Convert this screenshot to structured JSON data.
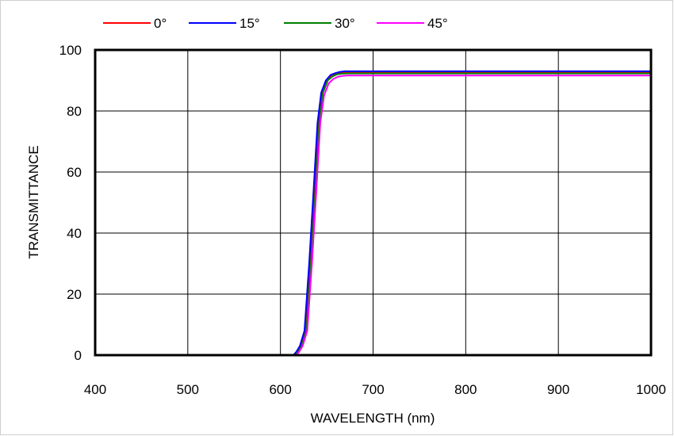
{
  "chart_data": {
    "type": "line",
    "xlabel": "WAVELENGTH (nm)",
    "ylabel": "TRANSMITTANCE",
    "xlim": [
      400,
      1000
    ],
    "ylim": [
      0,
      100
    ],
    "x_ticks": [
      400,
      500,
      600,
      700,
      800,
      900,
      1000
    ],
    "y_ticks": [
      0,
      20,
      40,
      60,
      80,
      100
    ],
    "grid": true,
    "legend_position": "top",
    "series": [
      {
        "name": "0°",
        "color": "#ff0000",
        "x": [
          500,
          615,
          618,
          622,
          627,
          632,
          637,
          641,
          645,
          650,
          655,
          660,
          665,
          670,
          700,
          1000
        ],
        "y": [
          0,
          0,
          1,
          3,
          8,
          30,
          55,
          76,
          86,
          90,
          91.5,
          92.2,
          92.5,
          92.6,
          92.6,
          92.6
        ]
      },
      {
        "name": "15°",
        "color": "#0000ff",
        "x": [
          500,
          614,
          617,
          621,
          626,
          631,
          636,
          640,
          644,
          649,
          654,
          659,
          664,
          669,
          700,
          1000
        ],
        "y": [
          0,
          0,
          1,
          3,
          8,
          30,
          55,
          76,
          86,
          90,
          91.8,
          92.4,
          92.8,
          93,
          93,
          93
        ]
      },
      {
        "name": "30°",
        "color": "#008000",
        "x": [
          500,
          616,
          619,
          623,
          628,
          633,
          638,
          642,
          646,
          651,
          656,
          661,
          666,
          671,
          700,
          1000
        ],
        "y": [
          0,
          0,
          1,
          3,
          8,
          30,
          55,
          76,
          86,
          90,
          91.3,
          92,
          92.2,
          92.3,
          92.3,
          92.3
        ]
      },
      {
        "name": "45°",
        "color": "#ff00ff",
        "x": [
          500,
          617,
          620,
          624,
          629,
          634,
          639,
          643,
          647,
          652,
          657,
          662,
          667,
          672,
          700,
          1000
        ],
        "y": [
          0,
          0,
          1,
          3,
          8,
          30,
          55,
          76,
          85,
          89,
          90.5,
          91.2,
          91.5,
          91.6,
          91.6,
          91.6
        ]
      }
    ]
  }
}
